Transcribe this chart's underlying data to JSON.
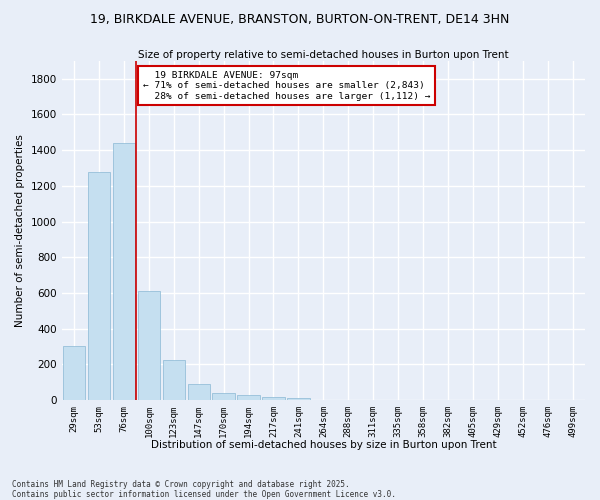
{
  "title": "19, BIRKDALE AVENUE, BRANSTON, BURTON-ON-TRENT, DE14 3HN",
  "subtitle": "Size of property relative to semi-detached houses in Burton upon Trent",
  "xlabel": "Distribution of semi-detached houses by size in Burton upon Trent",
  "ylabel": "Number of semi-detached properties",
  "categories": [
    "29sqm",
    "53sqm",
    "76sqm",
    "100sqm",
    "123sqm",
    "147sqm",
    "170sqm",
    "194sqm",
    "217sqm",
    "241sqm",
    "264sqm",
    "288sqm",
    "311sqm",
    "335sqm",
    "358sqm",
    "382sqm",
    "405sqm",
    "429sqm",
    "452sqm",
    "476sqm",
    "499sqm"
  ],
  "values": [
    305,
    1275,
    1440,
    610,
    225,
    90,
    38,
    28,
    20,
    10,
    2,
    0,
    0,
    0,
    0,
    0,
    0,
    0,
    0,
    0,
    0
  ],
  "bar_color": "#c5dff0",
  "bar_edge_color": "#89b8d4",
  "property_line_x": 2.5,
  "property_label": "19 BIRKDALE AVENUE: 97sqm",
  "smaller_pct": "71%",
  "smaller_n": "2,843",
  "larger_pct": "28%",
  "larger_n": "1,112",
  "annotation_box_color": "#ffffff",
  "annotation_box_edge": "#cc0000",
  "line_color": "#cc0000",
  "background_color": "#e8eef8",
  "grid_color": "#ffffff",
  "ylim": [
    0,
    1900
  ],
  "yticks": [
    0,
    200,
    400,
    600,
    800,
    1000,
    1200,
    1400,
    1600,
    1800
  ],
  "footer1": "Contains HM Land Registry data © Crown copyright and database right 2025.",
  "footer2": "Contains public sector information licensed under the Open Government Licence v3.0."
}
